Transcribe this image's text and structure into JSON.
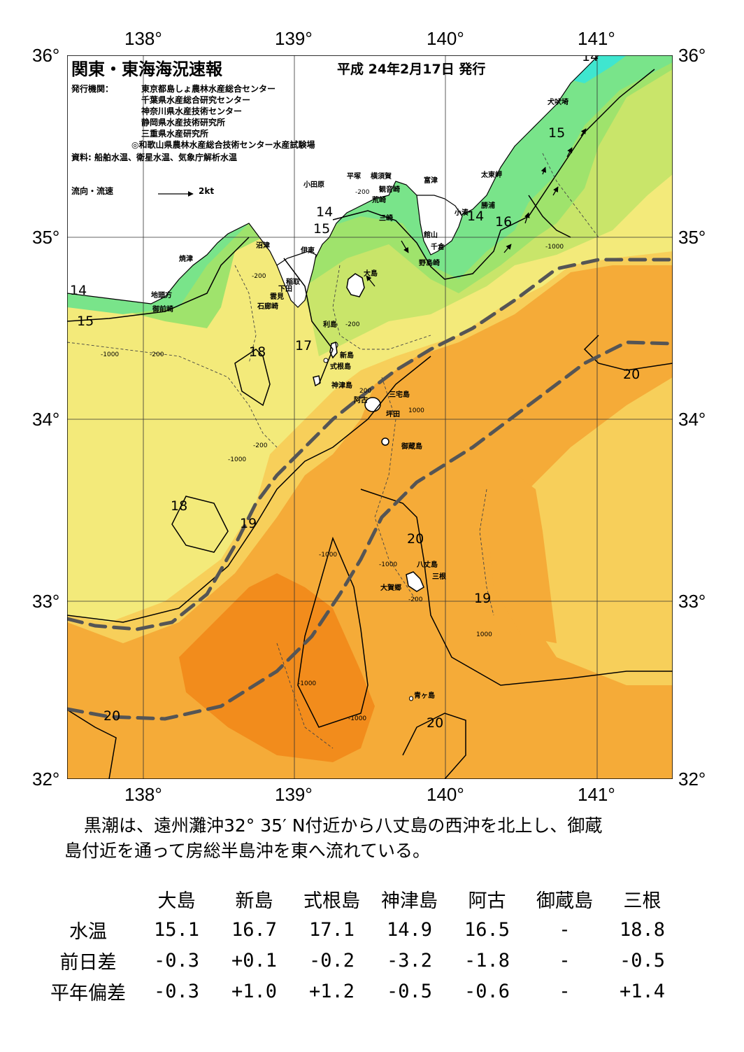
{
  "axes": {
    "lon_ticks": [
      "138°",
      "139°",
      "140°",
      "141°"
    ],
    "lat_ticks": [
      "36°",
      "35°",
      "34°",
      "33°",
      "32°"
    ]
  },
  "header": {
    "title": "関東・東海海況速報",
    "issue_date": "平成 24年2月17日 発行",
    "publisher_label": "発行機関：",
    "publishers": [
      "東京都島しょ農林水産総合センター",
      "千葉県水産総合研究センター",
      "神奈川県水産技術センター",
      "静岡県水産技術研究所",
      "三重県水産研究所",
      "◎和歌山県農林水産総合技術センター水産試験場"
    ],
    "source": "資料: 船舶水温、衛星水温、気象庁解析水温",
    "flow_legend": "流向・流速",
    "flow_scale": "2kt"
  },
  "place_names": {
    "oshima": "大島",
    "niijima": "新島",
    "shikinejima": "式根島",
    "kozushima": "神津島",
    "toshima": "利島",
    "miyakejima": "三宅島",
    "ako": "阿古",
    "tsubota": "坪田",
    "mikurajima": "御蔵島",
    "hachijojima": "八丈島",
    "mitsune": "三根",
    "okago": "大賀郷",
    "aogashima": "青ヶ島",
    "inubozaki": "犬吠埼",
    "taitomisaki": "太東岬",
    "katsuura": "勝浦",
    "kominato": "小湊",
    "futtsu": "富津",
    "tateyama": "館山",
    "chikura": "千倉",
    "nojimazaki": "野島崎",
    "yokosuka": "横須賀",
    "kannonzaki": "観音崎",
    "arasaki": "荒崎",
    "misaki": "三崎",
    "hiratsuka": "平塚",
    "odawara": "小田原",
    "ito": "伊東",
    "inatori": "稲取",
    "shimoda": "下田",
    "kumomi": "雲見",
    "irozaki": "石廊崎",
    "numazu": "沼津",
    "yaizu": "焼津",
    "jitokata": "地頭方",
    "omaezaki": "御前崎"
  },
  "isotherm_labels": {
    "t14_a": "14",
    "t14_b": "14",
    "t14_c": "14",
    "t14_d": "14",
    "t15_a": "15",
    "t15_b": "15",
    "t15_c": "15",
    "t16": "16",
    "t17": "17",
    "t18_a": "18",
    "t18_b": "18",
    "t19_a": "19",
    "t19_b": "19",
    "t20_a": "20",
    "t20_b": "20",
    "t20_c": "20",
    "t20_d": "20"
  },
  "depth_labels": {
    "d200": "-200",
    "d1000": "-1000",
    "d200b": "200",
    "d1000b": "1000"
  },
  "summary": {
    "line1": "黒潮は、遠州灘沖32° 35′ N付近から八丈島の西沖を北上し、御蔵",
    "line2": "島付近を通って房総半島沖を東へ流れている。"
  },
  "table": {
    "columns": [
      "大島",
      "新島",
      "式根島",
      "神津島",
      "阿古",
      "御蔵島",
      "三根"
    ],
    "rows": [
      {
        "label": "水温",
        "values": [
          "15.1",
          "16.7",
          "17.1",
          "14.9",
          "16.5",
          "-",
          "18.8"
        ]
      },
      {
        "label": "前日差",
        "values": [
          "-0.3",
          "+0.1",
          "-0.2",
          "-3.2",
          "-1.8",
          "-",
          "-0.5"
        ]
      },
      {
        "label": "平年偏差",
        "values": [
          "-0.3",
          "+1.0",
          "+1.2",
          "-0.5",
          "-0.6",
          "-",
          "+1.4"
        ]
      }
    ]
  },
  "colors": {
    "t14": "#3fe6cf",
    "t15": "#79e48a",
    "t16": "#9fe36c",
    "t17": "#c9e56a",
    "t18": "#f3ea7a",
    "t19": "#f7cf5a",
    "t20": "#f5ab38",
    "t21": "#f28c1c",
    "kuroshio": "#555555",
    "land": "#ffffff"
  }
}
